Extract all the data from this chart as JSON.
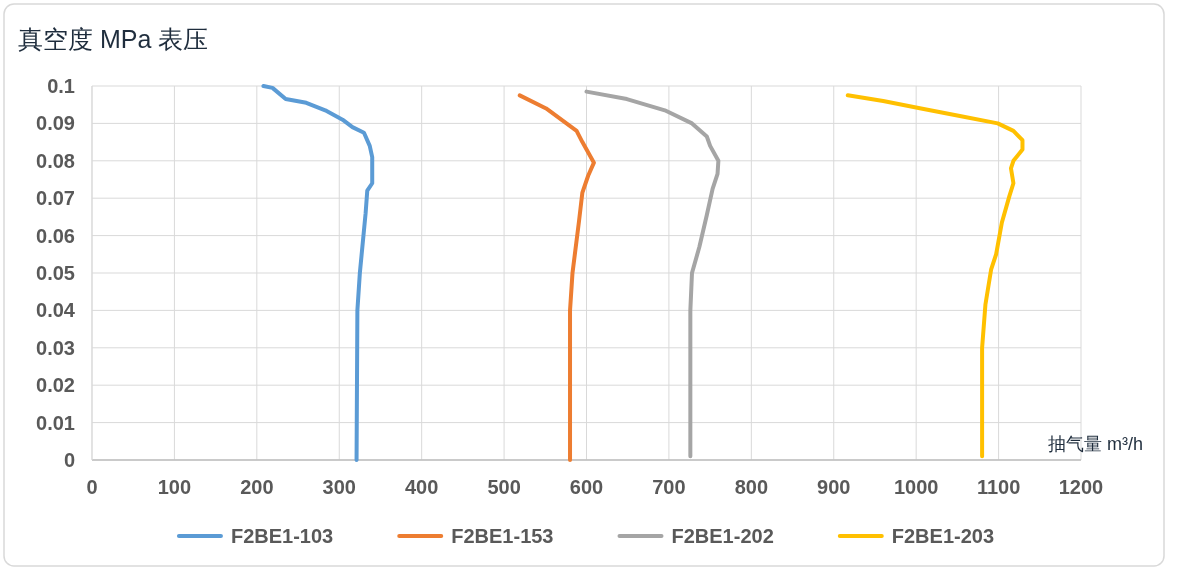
{
  "chart_data": {
    "type": "line",
    "ylabel": "真空度 MPa 表压",
    "xlabel": "抽气量 m³/h",
    "xlim": [
      0,
      1200
    ],
    "xticks": [
      0,
      100,
      200,
      300,
      400,
      500,
      600,
      700,
      800,
      900,
      1000,
      1100,
      1200
    ],
    "ylim": [
      0,
      0.1
    ],
    "yticks": [
      0,
      0.01,
      0.02,
      0.03,
      0.04,
      0.05,
      0.06,
      0.07,
      0.08,
      0.09,
      0.1
    ],
    "grid": true,
    "legend": "bottom",
    "marker": "none",
    "line_style": "solid",
    "series": [
      {
        "name": "F2BE1-103",
        "color": "#5b9bd5",
        "x": [
          208,
          219,
          235,
          260,
          283,
          304,
          316,
          330,
          337,
          340,
          340,
          334,
          332,
          325,
          322,
          321
        ],
        "values": [
          0.1,
          0.0995,
          0.0965,
          0.0955,
          0.0935,
          0.091,
          0.089,
          0.0875,
          0.084,
          0.081,
          0.074,
          0.072,
          0.066,
          0.05,
          0.04,
          0
        ]
      },
      {
        "name": "F2BE1-153",
        "color": "#ed7d31",
        "x": [
          519,
          551,
          588,
          595,
          609,
          602,
          595,
          591,
          583,
          580,
          580
        ],
        "values": [
          0.0975,
          0.094,
          0.088,
          0.085,
          0.0795,
          0.076,
          0.0715,
          0.064,
          0.05,
          0.04,
          0
        ]
      },
      {
        "name": "F2BE1-202",
        "color": "#a5a5a5",
        "x": [
          600,
          649,
          695,
          728,
          746,
          750,
          760,
          759,
          753,
          746,
          737,
          728,
          726,
          726
        ],
        "values": [
          0.0985,
          0.0965,
          0.0935,
          0.09,
          0.0865,
          0.084,
          0.08,
          0.0765,
          0.0725,
          0.0655,
          0.057,
          0.05,
          0.04,
          0.001
        ]
      },
      {
        "name": "F2BE1-203",
        "color": "#ffc000",
        "x": [
          917,
          960,
          1006,
          1053,
          1099,
          1118,
          1129,
          1129,
          1118,
          1115,
          1118,
          1113,
          1104,
          1097,
          1091,
          1084,
          1080,
          1080
        ],
        "values": [
          0.0975,
          0.096,
          0.094,
          0.092,
          0.09,
          0.088,
          0.0855,
          0.083,
          0.08,
          0.078,
          0.074,
          0.0705,
          0.0635,
          0.055,
          0.051,
          0.0415,
          0.03,
          0.001
        ]
      }
    ]
  }
}
